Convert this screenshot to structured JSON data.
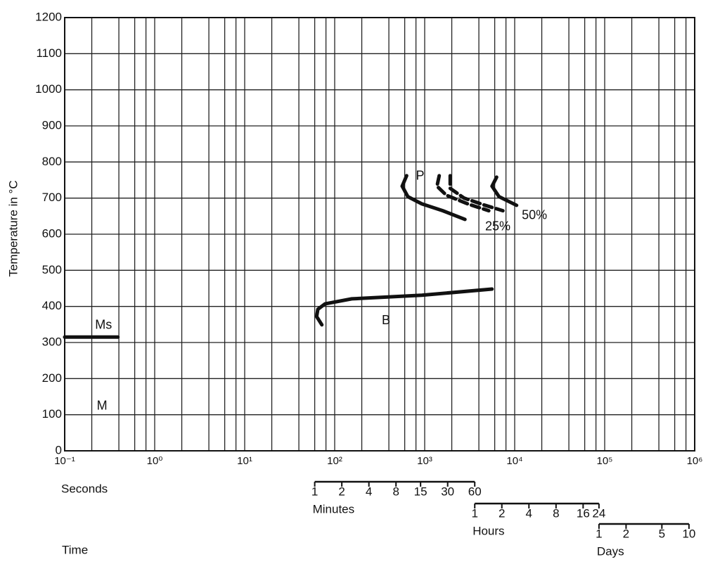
{
  "chart_data": {
    "type": "line",
    "y_label": "Temperature in °C",
    "x_label": "Time",
    "x_unit_label": "Seconds",
    "xscale": "log",
    "grid": true,
    "minor_grid": [
      2,
      4,
      6,
      8
    ],
    "xlim": [
      0.1,
      1000000
    ],
    "ylim": [
      0,
      1200
    ],
    "xticks": [
      {
        "value": 0.1,
        "label": "10⁻¹"
      },
      {
        "value": 1,
        "label": "10⁰"
      },
      {
        "value": 10,
        "label": "10¹"
      },
      {
        "value": 100,
        "label": "10²"
      },
      {
        "value": 1000,
        "label": "10³"
      },
      {
        "value": 10000,
        "label": "10⁴"
      },
      {
        "value": 100000,
        "label": "10⁵"
      },
      {
        "value": 1000000,
        "label": "10⁶"
      }
    ],
    "yticks": [
      0,
      100,
      200,
      300,
      400,
      500,
      600,
      700,
      800,
      900,
      1000,
      1100,
      1200
    ],
    "series": [
      {
        "color": "#111111",
        "dash": false,
        "x": [
          0.1,
          0.39
        ],
        "values": [
          315,
          315
        ]
      },
      {
        "color": "#111111",
        "dash": false,
        "x": [
          72,
          63,
          65,
          78,
          155,
          930,
          5600
        ],
        "values": [
          349,
          372,
          392,
          407,
          421,
          431,
          448
        ]
      },
      {
        "color": "#111111",
        "dash": false,
        "x": [
          630,
          562,
          650,
          930,
          1590,
          2800
        ],
        "values": [
          762,
          733,
          704,
          684,
          665,
          641
        ]
      },
      {
        "color": "#111111",
        "dash": true,
        "x": [
          1450,
          1370,
          1740,
          3000,
          5150
        ],
        "values": [
          762,
          733,
          708,
          684,
          665
        ]
      },
      {
        "color": "#111111",
        "dash": true,
        "x": [
          1920,
          1920,
          2740,
          4700,
          7400
        ],
        "values": [
          762,
          727,
          700,
          680,
          665
        ]
      },
      {
        "color": "#111111",
        "dash": false,
        "x": [
          6300,
          5600,
          6700,
          10500
        ],
        "values": [
          758,
          733,
          704,
          680
        ]
      }
    ],
    "annotations": [
      {
        "text": "Ms",
        "x": 0.27,
        "y": 347
      },
      {
        "text": "M",
        "x": 0.26,
        "y": 123
      },
      {
        "text": "B",
        "x": 372,
        "y": 360
      },
      {
        "text": "P",
        "x": 890,
        "y": 760
      },
      {
        "text": "25%",
        "x": 6500,
        "y": 620
      },
      {
        "text": "50%",
        "x": 16600,
        "y": 651
      }
    ],
    "time_scales": [
      {
        "label": "Minutes",
        "ticks": [
          {
            "value": 60,
            "label": "1"
          },
          {
            "value": 120,
            "label": "2"
          },
          {
            "value": 240,
            "label": "4"
          },
          {
            "value": 480,
            "label": "8"
          },
          {
            "value": 900,
            "label": "15"
          },
          {
            "value": 1800,
            "label": "30"
          },
          {
            "value": 3600,
            "label": "60"
          }
        ]
      },
      {
        "label": "Hours",
        "ticks": [
          {
            "value": 3600,
            "label": "1"
          },
          {
            "value": 7200,
            "label": "2"
          },
          {
            "value": 14400,
            "label": "4"
          },
          {
            "value": 28800,
            "label": "8"
          },
          {
            "value": 57600,
            "label": "16"
          },
          {
            "value": 86400,
            "label": "24"
          }
        ]
      },
      {
        "label": "Days",
        "ticks": [
          {
            "value": 86400,
            "label": "1"
          },
          {
            "value": 172800,
            "label": "2"
          },
          {
            "value": 432000,
            "label": "5"
          },
          {
            "value": 864000,
            "label": "10"
          }
        ]
      }
    ]
  }
}
